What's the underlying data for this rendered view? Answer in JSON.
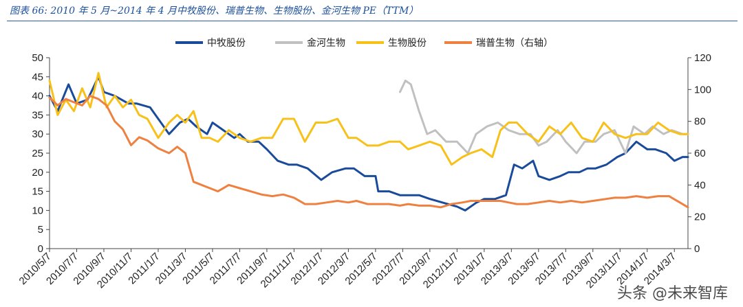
{
  "header": {
    "title": "图表 66:  2010 年 5 月~2014 年 4 月中牧股份、瑞普生物、生物股份、金河生物 PE（TTM）"
  },
  "watermark": {
    "text": "头条 @未来智库"
  },
  "chart_data": {
    "type": "line",
    "title": "图表 66:  2010 年 5 月~2014 年 4 月中牧股份、瑞普生物、生物股份、金河生物 PE（TTM）",
    "categories": [
      "2010/5/7",
      "2010/7/7",
      "2010/9/7",
      "2010/11/7",
      "2011/1/7",
      "2011/3/7",
      "2011/5/7",
      "2011/7/7",
      "2011/9/7",
      "2011/11/7",
      "2012/1/7",
      "2012/3/7",
      "2012/5/7",
      "2012/7/7",
      "2012/9/7",
      "2012/11/7",
      "2013/1/7",
      "2013/3/7",
      "2013/5/7",
      "2013/7/7",
      "2013/9/7",
      "2013/11/7",
      "2014/1/7",
      "2014/3/7"
    ],
    "y_left": {
      "min": 0,
      "max": 50,
      "ticks": [
        "0",
        "5",
        "10",
        "15",
        "20",
        "25",
        "30",
        "35",
        "40",
        "45",
        "50"
      ]
    },
    "y_right": {
      "min": 0,
      "max": 120,
      "ticks": [
        "0",
        "20",
        "40",
        "60",
        "80",
        "100",
        "120"
      ]
    },
    "legend": [
      "中牧股份",
      "金河生物",
      "生物股份",
      "瑞普生物（右轴）"
    ],
    "legend_position": "top-center",
    "series": [
      {
        "name": "中牧股份",
        "axis": "left",
        "color": "#1a4b9a",
        "x": [
          0,
          0.3,
          0.7,
          1,
          1.4,
          1.8,
          2,
          2.4,
          2.9,
          3.2,
          3.7,
          4,
          4.4,
          4.8,
          5.1,
          5.4,
          5.8,
          6,
          6.4,
          6.8,
          7,
          7.3,
          7.7,
          8,
          8.4,
          8.8,
          9.1,
          9.5,
          10,
          10.4,
          10.9,
          11.2,
          11.6,
          12,
          12.1,
          12.5,
          12.9,
          13.3,
          13.6,
          14,
          14.5,
          15,
          15.3,
          15.7,
          16,
          16.4,
          16.8,
          17.1,
          17.4,
          17.8,
          18,
          18.4,
          18.8,
          19.1,
          19.5,
          19.8,
          20.1,
          20.5,
          20.9,
          21.2,
          21.6,
          22,
          22.3,
          22.7,
          23,
          23.3,
          23.5
        ],
        "values": [
          40,
          36,
          43,
          38,
          39,
          45,
          41,
          40,
          38,
          38,
          37,
          34,
          30,
          33,
          34,
          32,
          30,
          33,
          31,
          29,
          30,
          28,
          28,
          26,
          23,
          22,
          22,
          21,
          18,
          20,
          21,
          21,
          19,
          19,
          15,
          15,
          14,
          14,
          14,
          13,
          12,
          11,
          10,
          12,
          13,
          13,
          14,
          22,
          21,
          23,
          19,
          18,
          19,
          20,
          20,
          21,
          21,
          22,
          24,
          25,
          28,
          26,
          26,
          25,
          23,
          24,
          24
        ]
      },
      {
        "name": "金河生物",
        "axis": "left",
        "color": "#c0c0c0",
        "x": [
          12.9,
          13.1,
          13.3,
          13.6,
          13.9,
          14.2,
          14.6,
          15,
          15.4,
          15.7,
          16.1,
          16.5,
          16.9,
          17.3,
          17.7,
          18,
          18.3,
          18.7,
          19,
          19.4,
          19.7,
          20.1,
          20.4,
          20.8,
          21.2,
          21.5,
          21.9,
          22.2,
          22.6,
          22.9,
          23.3,
          23.5
        ],
        "values": [
          41,
          44,
          43,
          36,
          30,
          31,
          28,
          28,
          25,
          30,
          32,
          33,
          31,
          30,
          30,
          27,
          28,
          31,
          28,
          25,
          28,
          28,
          30,
          31,
          25,
          32,
          30,
          32,
          30,
          31,
          30,
          30
        ]
      },
      {
        "name": "生物股份",
        "axis": "left",
        "color": "#f7c11a",
        "x": [
          0,
          0.3,
          0.6,
          0.9,
          1.2,
          1.5,
          1.8,
          2.1,
          2.4,
          2.7,
          3,
          3.3,
          3.6,
          4,
          4.4,
          4.7,
          5,
          5.3,
          5.6,
          5.9,
          6.2,
          6.6,
          7,
          7.4,
          7.8,
          8.2,
          8.6,
          9,
          9.4,
          9.8,
          10.2,
          10.6,
          11,
          11.3,
          11.7,
          12.1,
          12.5,
          12.9,
          13.2,
          13.6,
          14,
          14.4,
          14.8,
          15.2,
          15.5,
          15.9,
          16.3,
          16.6,
          16.9,
          17.2,
          17.6,
          18,
          18.4,
          18.8,
          19.2,
          19.6,
          20,
          20.4,
          20.8,
          21.2,
          21.6,
          22,
          22.4,
          22.8,
          23.2,
          23.5
        ],
        "values": [
          44,
          35,
          39,
          36,
          42,
          37,
          46,
          37,
          40,
          37,
          39,
          35,
          34,
          29,
          33,
          35,
          33,
          36,
          29,
          29,
          28,
          31,
          29,
          28,
          29,
          29,
          34,
          34,
          28,
          33,
          33,
          34,
          29,
          29,
          27,
          27,
          28,
          28,
          26,
          27,
          28,
          27,
          22,
          24,
          25,
          26,
          24,
          31,
          33,
          33,
          30,
          28,
          32,
          30,
          33,
          29,
          28,
          33,
          30,
          29,
          30,
          30,
          33,
          31,
          30,
          30
        ]
      },
      {
        "name": "瑞普生物（右轴）",
        "axis": "right",
        "color": "#ee8040",
        "x": [
          0,
          0.3,
          0.6,
          0.9,
          1.2,
          1.5,
          1.8,
          2.1,
          2.4,
          2.7,
          3,
          3.3,
          3.6,
          4,
          4.4,
          4.7,
          5,
          5.3,
          5.6,
          5.9,
          6.2,
          6.6,
          7,
          7.4,
          7.8,
          8.2,
          8.6,
          9,
          9.4,
          9.8,
          10.2,
          10.6,
          11,
          11.3,
          11.7,
          12.1,
          12.5,
          12.9,
          13.2,
          13.6,
          14,
          14.4,
          14.8,
          15.2,
          15.5,
          15.9,
          16.3,
          16.6,
          16.9,
          17.2,
          17.6,
          18,
          18.4,
          18.8,
          19.2,
          19.6,
          20,
          20.4,
          20.8,
          21.2,
          21.6,
          22,
          22.4,
          22.8,
          23.2,
          23.5
        ],
        "values": [
          95,
          90,
          94,
          92,
          90,
          96,
          94,
          90,
          80,
          75,
          65,
          70,
          68,
          63,
          60,
          64,
          60,
          42,
          40,
          38,
          36,
          40,
          38,
          36,
          34,
          33,
          34,
          32,
          28,
          28,
          29,
          30,
          29,
          30,
          28,
          28,
          28,
          27,
          28,
          27,
          27,
          26,
          28,
          29,
          30,
          30,
          30,
          30,
          29,
          28,
          28,
          29,
          30,
          29,
          30,
          29,
          30,
          31,
          32,
          32,
          33,
          32,
          33,
          33,
          29,
          26
        ]
      }
    ]
  }
}
